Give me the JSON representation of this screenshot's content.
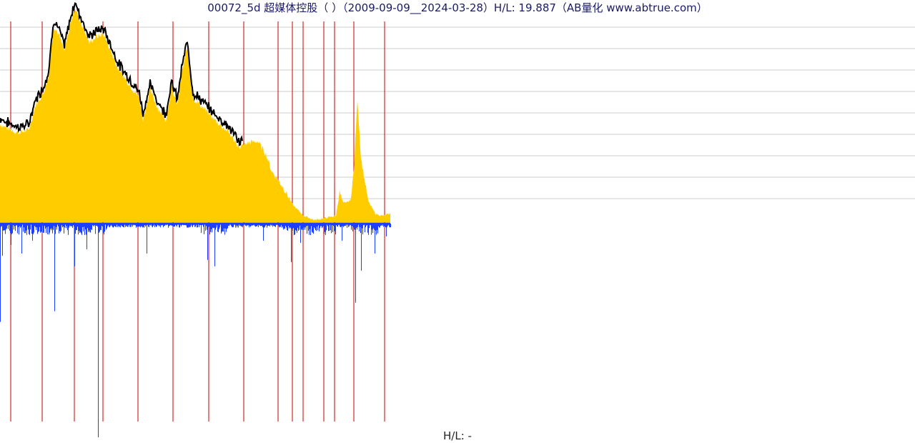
{
  "title": "00072_5d 超媒体控股（ ）（2009-09-09__2024-03-28）H/L: 19.887（AB量化  www.abtrue.com）",
  "footer_label": "H/L: -",
  "colors": {
    "price_fill": "#ffcc00",
    "price_line": "#000000",
    "volume": "#1f3fff",
    "year_marker": "#cc0000",
    "grid": "#cccccc"
  },
  "chart_data": {
    "type": "area",
    "title": "00072_5d 超媒体控股（ ）（2009-09-09__2024-03-28）H/L: 19.887（AB量化  www.abtrue.com）",
    "date_range": [
      "2009-09-09",
      "2024-03-28"
    ],
    "high_low_ratio": 19.887,
    "price_profile": [
      [
        0,
        0.46
      ],
      [
        10,
        0.44
      ],
      [
        25,
        0.42
      ],
      [
        40,
        0.43
      ],
      [
        50,
        0.55
      ],
      [
        60,
        0.6
      ],
      [
        68,
        0.68
      ],
      [
        75,
        0.92
      ],
      [
        82,
        0.88
      ],
      [
        90,
        0.8
      ],
      [
        100,
        0.95
      ],
      [
        105,
        1.0
      ],
      [
        115,
        0.92
      ],
      [
        125,
        0.84
      ],
      [
        135,
        0.87
      ],
      [
        145,
        0.88
      ],
      [
        155,
        0.8
      ],
      [
        165,
        0.72
      ],
      [
        180,
        0.65
      ],
      [
        195,
        0.58
      ],
      [
        200,
        0.48
      ],
      [
        210,
        0.62
      ],
      [
        220,
        0.54
      ],
      [
        232,
        0.48
      ],
      [
        240,
        0.63
      ],
      [
        248,
        0.55
      ],
      [
        255,
        0.71
      ],
      [
        262,
        0.82
      ],
      [
        270,
        0.58
      ],
      [
        280,
        0.55
      ],
      [
        300,
        0.48
      ],
      [
        320,
        0.42
      ],
      [
        335,
        0.35
      ],
      [
        345,
        0.37
      ],
      [
        360,
        0.38
      ],
      [
        372,
        0.32
      ],
      [
        380,
        0.24
      ],
      [
        395,
        0.17
      ],
      [
        410,
        0.08
      ],
      [
        425,
        0.03
      ],
      [
        440,
        0.01
      ],
      [
        455,
        0.02
      ],
      [
        470,
        0.03
      ],
      [
        475,
        0.14
      ],
      [
        480,
        0.09
      ],
      [
        490,
        0.1
      ],
      [
        495,
        0.24
      ],
      [
        500,
        0.58
      ],
      [
        505,
        0.3
      ],
      [
        515,
        0.1
      ],
      [
        525,
        0.04
      ],
      [
        535,
        0.03
      ],
      [
        546,
        0.04
      ]
    ],
    "volume_spikes": [
      [
        0,
        0.46
      ],
      [
        3,
        0.15
      ],
      [
        15,
        0.1
      ],
      [
        30,
        0.14
      ],
      [
        45,
        0.08
      ],
      [
        76,
        0.41
      ],
      [
        104,
        0.2
      ],
      [
        121,
        0.12
      ],
      [
        137,
        1.0
      ],
      [
        205,
        0.14
      ],
      [
        290,
        0.17
      ],
      [
        300,
        0.2
      ],
      [
        368,
        0.08
      ],
      [
        407,
        0.18
      ],
      [
        420,
        0.09
      ],
      [
        478,
        0.08
      ],
      [
        497,
        0.37
      ],
      [
        505,
        0.22
      ],
      [
        524,
        0.14
      ],
      [
        540,
        0.06
      ]
    ],
    "year_markers": [
      15,
      59,
      104,
      144,
      193,
      242,
      292,
      341,
      389,
      409,
      424,
      453,
      468,
      495,
      538
    ],
    "grid": true
  }
}
